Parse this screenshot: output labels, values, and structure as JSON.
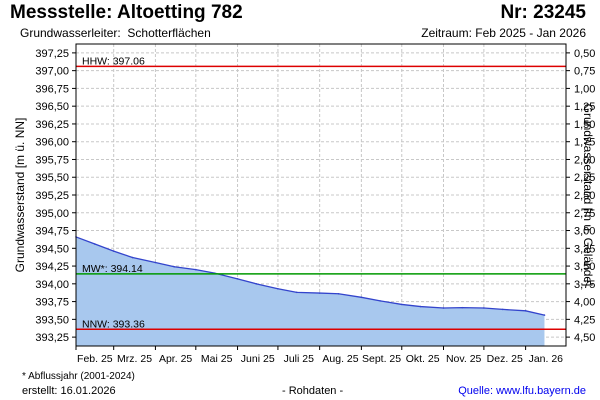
{
  "header": {
    "title": "Messstelle: Altoetting 782",
    "number": "Nr: 23245",
    "aquifer_label": "Grundwasserleiter:",
    "aquifer_value": "Schotterflächen",
    "period": "Zeitraum: Feb 2025 - Jan 2026"
  },
  "footer": {
    "footnote": "* Abflussjahr (2001-2024)",
    "created": "erstellt:  16.01.2026",
    "raw": "- Rohdaten -",
    "source_label": "Quelle:",
    "source_value": "www.lfu.bayern.de"
  },
  "chart_data": {
    "type": "area",
    "ylabel": "Grundwasserstand [m ü. NN]",
    "y2label": "Grundwasserstand [m u. Gelände]",
    "ylim": [
      393.125,
      397.375
    ],
    "y_ticks": [
      "393,25",
      "393,50",
      "393,75",
      "394,00",
      "394,25",
      "394,50",
      "394,75",
      "395,00",
      "395,25",
      "395,50",
      "395,75",
      "396,00",
      "396,25",
      "396,50",
      "396,75",
      "397,00",
      "397,25"
    ],
    "y_tick_values": [
      393.25,
      393.5,
      393.75,
      394.0,
      394.25,
      394.5,
      394.75,
      395.0,
      395.25,
      395.5,
      395.75,
      396.0,
      396.25,
      396.5,
      396.75,
      397.0,
      397.25
    ],
    "y2_ticks": [
      "4,50",
      "4,25",
      "4,00",
      "3,75",
      "3,50",
      "3,25",
      "3,00",
      "2,75",
      "2,50",
      "2,25",
      "2,00",
      "1,75",
      "1,50",
      "1,25",
      "1,00",
      "0,75",
      "0,50"
    ],
    "x_ticks": [
      "Feb. 25",
      "Mrz. 25",
      "Apr. 25",
      "Mai 25",
      "Juni 25",
      "Juli 25",
      "Aug. 25",
      "Sept. 25",
      "Okt. 25",
      "Nov. 25",
      "Dez. 25",
      "Jan. 26"
    ],
    "x_tick_dates": [
      "2025-02-01",
      "2025-03-01",
      "2025-04-01",
      "2025-05-01",
      "2025-06-01",
      "2025-07-01",
      "2025-08-01",
      "2025-09-01",
      "2025-10-01",
      "2025-11-01",
      "2025-12-01",
      "2026-01-01"
    ],
    "x_range": [
      "2025-02-01",
      "2026-01-31"
    ],
    "grid": true,
    "area_color": "#a8c8ee",
    "line_color": "#3344cc",
    "series": [
      {
        "x": [
          "2025-02-01",
          "2025-02-15",
          "2025-03-01",
          "2025-03-15",
          "2025-04-01",
          "2025-04-15",
          "2025-05-01",
          "2025-05-15",
          "2025-06-01",
          "2025-06-15",
          "2025-07-01",
          "2025-07-15",
          "2025-08-01",
          "2025-08-15",
          "2025-09-01",
          "2025-09-15",
          "2025-10-01",
          "2025-10-15",
          "2025-11-01",
          "2025-11-15",
          "2025-12-01",
          "2025-12-15",
          "2026-01-01",
          "2026-01-15"
        ],
        "y": [
          394.66,
          394.56,
          394.46,
          394.37,
          394.3,
          394.24,
          394.2,
          394.15,
          394.07,
          394.0,
          393.93,
          393.88,
          393.87,
          393.86,
          393.81,
          393.76,
          393.71,
          393.68,
          393.66,
          393.665,
          393.66,
          393.64,
          393.62,
          393.56
        ]
      }
    ],
    "reference_lines": [
      {
        "label": "HHW: 397.06",
        "value": 397.06,
        "color": "#dd0000"
      },
      {
        "label": "MW*: 394.14",
        "value": 394.14,
        "color": "#009900"
      },
      {
        "label": "NNW: 393.36",
        "value": 393.36,
        "color": "#dd0000"
      }
    ]
  }
}
